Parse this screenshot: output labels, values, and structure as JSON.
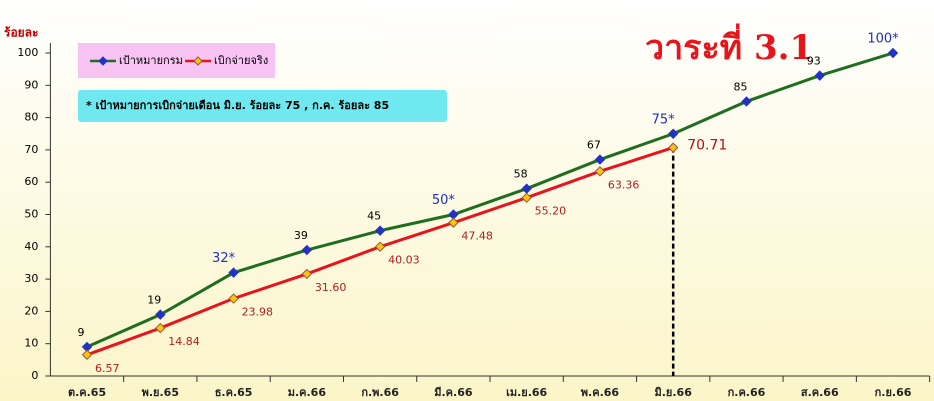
{
  "chart_data": {
    "type": "line",
    "y_label": "ร้อยละ",
    "annotation": "วาระที่ 3.1",
    "note": "* เป้าหมายการเบิกจ่ายเดือน มิ.ย. ร้อยละ 75 , ก.ค. ร้อยละ 85",
    "categories": [
      "ต.ค.65",
      "พ.ย.65",
      "ธ.ค.65",
      "ม.ค.66",
      "ก.พ.66",
      "มี.ค.66",
      "เม.ย.66",
      "พ.ค.66",
      "มิ.ย.66",
      "ก.ค.66",
      "ส.ค.66",
      "ก.ย.66"
    ],
    "series": [
      {
        "name": "เป้าหมายกรม",
        "color": "#1f6e1f",
        "marker_color": "#2233c4",
        "values": [
          9,
          19,
          32,
          39,
          45,
          50,
          58,
          67,
          75,
          85,
          93,
          100
        ],
        "value_labels": [
          "9",
          "19",
          "32*",
          "39",
          "45",
          "50*",
          "58",
          "67",
          "75*",
          "85",
          "93",
          "100*"
        ]
      },
      {
        "name": "เบิกจ่ายจริง",
        "color": "#e8141c",
        "marker_color": "#f5c518",
        "values": [
          6.57,
          14.84,
          23.98,
          31.6,
          40.03,
          47.48,
          55.2,
          63.36,
          70.71,
          null,
          null,
          null
        ],
        "value_labels": [
          "6.57",
          "14.84",
          "23.98",
          "31.60",
          "40.03",
          "47.48",
          "55.20",
          "63.36",
          "70.71",
          null,
          null,
          null
        ]
      }
    ],
    "ylim": [
      0,
      100
    ],
    "yticks": [
      0,
      10,
      20,
      30,
      40,
      50,
      60,
      70,
      80,
      90,
      100
    ],
    "grid": false
  }
}
